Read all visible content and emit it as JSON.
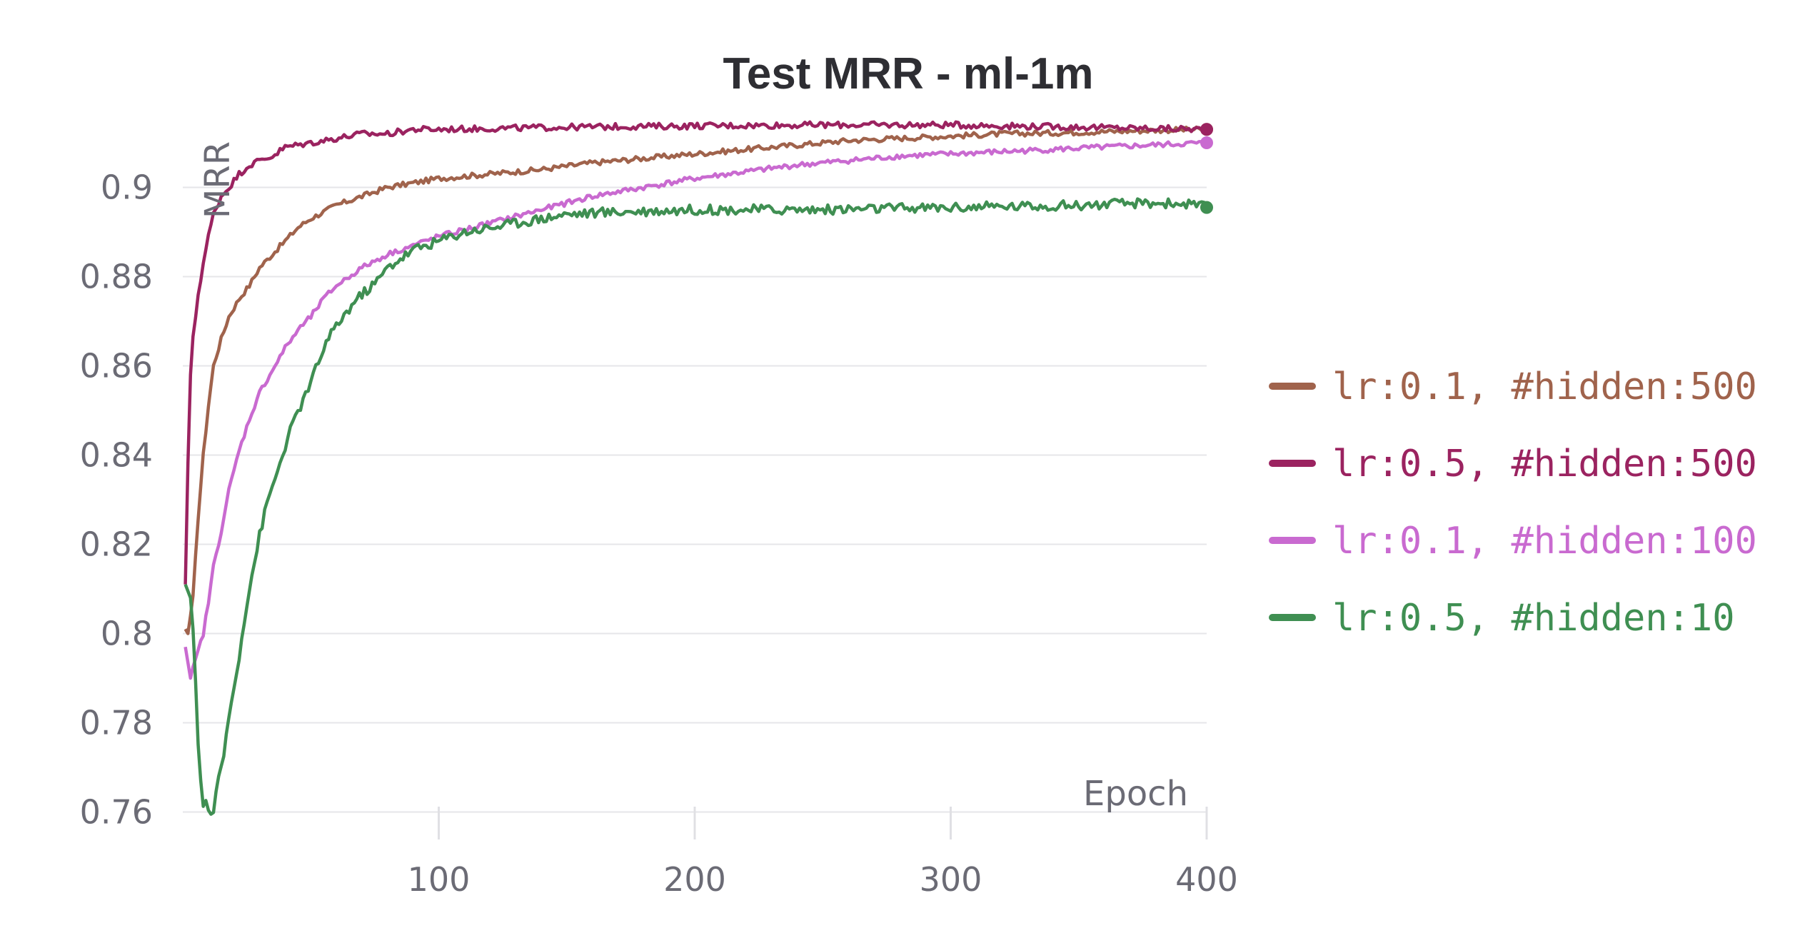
{
  "chart_data": {
    "type": "line",
    "title": "Test MRR - ml-1m",
    "xlabel": "Epoch",
    "ylabel": "MRR",
    "xlim": [
      0,
      400
    ],
    "ylim": [
      0.758,
      0.918
    ],
    "x_ticks": [
      100,
      200,
      300,
      400
    ],
    "y_ticks": [
      0.76,
      0.78,
      0.8,
      0.82,
      0.84,
      0.86,
      0.88,
      0.9
    ],
    "y_tick_labels": [
      "0.76",
      "0.78",
      "0.8",
      "0.82",
      "0.84",
      "0.86",
      "0.88",
      "0.9"
    ],
    "grid": true,
    "legend_position": "right",
    "series": [
      {
        "name": "lr:0.1, #hidden:500",
        "color": "#a0634c",
        "x": [
          1,
          2,
          4,
          6,
          8,
          10,
          12,
          15,
          18,
          22,
          26,
          30,
          35,
          40,
          45,
          50,
          60,
          70,
          80,
          90,
          100,
          120,
          140,
          160,
          180,
          200,
          220,
          240,
          260,
          280,
          300,
          320,
          340,
          360,
          380,
          400
        ],
        "y": [
          0.801,
          0.8,
          0.808,
          0.826,
          0.84,
          0.851,
          0.86,
          0.866,
          0.871,
          0.875,
          0.878,
          0.882,
          0.885,
          0.888,
          0.891,
          0.893,
          0.896,
          0.898,
          0.9,
          0.901,
          0.902,
          0.903,
          0.904,
          0.9055,
          0.9065,
          0.9075,
          0.9085,
          0.9095,
          0.9105,
          0.911,
          0.9115,
          0.912,
          0.9122,
          0.9125,
          0.9128,
          0.913
        ]
      },
      {
        "name": "lr:0.5, #hidden:500",
        "color": "#9b2360",
        "x": [
          1,
          2,
          3,
          4,
          6,
          8,
          10,
          12,
          15,
          18,
          22,
          26,
          30,
          35,
          40,
          50,
          60,
          70,
          80,
          90,
          100,
          150,
          200,
          250,
          300,
          350,
          400
        ],
        "y": [
          0.811,
          0.838,
          0.858,
          0.866,
          0.876,
          0.883,
          0.889,
          0.894,
          0.898,
          0.9,
          0.903,
          0.905,
          0.906,
          0.907,
          0.909,
          0.91,
          0.911,
          0.912,
          0.912,
          0.913,
          0.913,
          0.9135,
          0.9138,
          0.914,
          0.914,
          0.9135,
          0.913
        ]
      },
      {
        "name": "lr:0.1, #hidden:100",
        "color": "#c96ad0",
        "x": [
          1,
          3,
          5,
          8,
          10,
          12,
          15,
          18,
          22,
          26,
          30,
          35,
          40,
          45,
          50,
          55,
          60,
          65,
          70,
          80,
          90,
          100,
          120,
          140,
          160,
          180,
          200,
          220,
          240,
          260,
          280,
          300,
          320,
          340,
          360,
          380,
          400
        ],
        "y": [
          0.797,
          0.79,
          0.794,
          0.8,
          0.807,
          0.815,
          0.823,
          0.832,
          0.841,
          0.848,
          0.854,
          0.859,
          0.864,
          0.868,
          0.871,
          0.875,
          0.878,
          0.88,
          0.882,
          0.885,
          0.887,
          0.889,
          0.892,
          0.895,
          0.898,
          0.9,
          0.902,
          0.9035,
          0.905,
          0.906,
          0.907,
          0.9075,
          0.908,
          0.9085,
          0.909,
          0.9095,
          0.91
        ]
      },
      {
        "name": "lr:0.5, #hidden:10",
        "color": "#3f8f52",
        "x": [
          1,
          3,
          4,
          5,
          6,
          7,
          8,
          9,
          10,
          11,
          12,
          14,
          16,
          18,
          20,
          22,
          24,
          26,
          28,
          30,
          32,
          35,
          38,
          40,
          43,
          46,
          50,
          53,
          56,
          60,
          64,
          68,
          72,
          76,
          80,
          85,
          90,
          95,
          100,
          110,
          120,
          130,
          140,
          150,
          170,
          200,
          250,
          300,
          350,
          380,
          395,
          400
        ],
        "y": [
          0.811,
          0.808,
          0.8,
          0.79,
          0.776,
          0.767,
          0.761,
          0.763,
          0.76,
          0.759,
          0.761,
          0.767,
          0.773,
          0.781,
          0.788,
          0.795,
          0.803,
          0.81,
          0.816,
          0.822,
          0.827,
          0.833,
          0.838,
          0.842,
          0.847,
          0.851,
          0.856,
          0.861,
          0.865,
          0.869,
          0.872,
          0.875,
          0.877,
          0.879,
          0.882,
          0.884,
          0.886,
          0.887,
          0.888,
          0.89,
          0.891,
          0.892,
          0.893,
          0.894,
          0.8945,
          0.895,
          0.895,
          0.8955,
          0.896,
          0.8965,
          0.8962,
          0.8955
        ]
      }
    ]
  }
}
